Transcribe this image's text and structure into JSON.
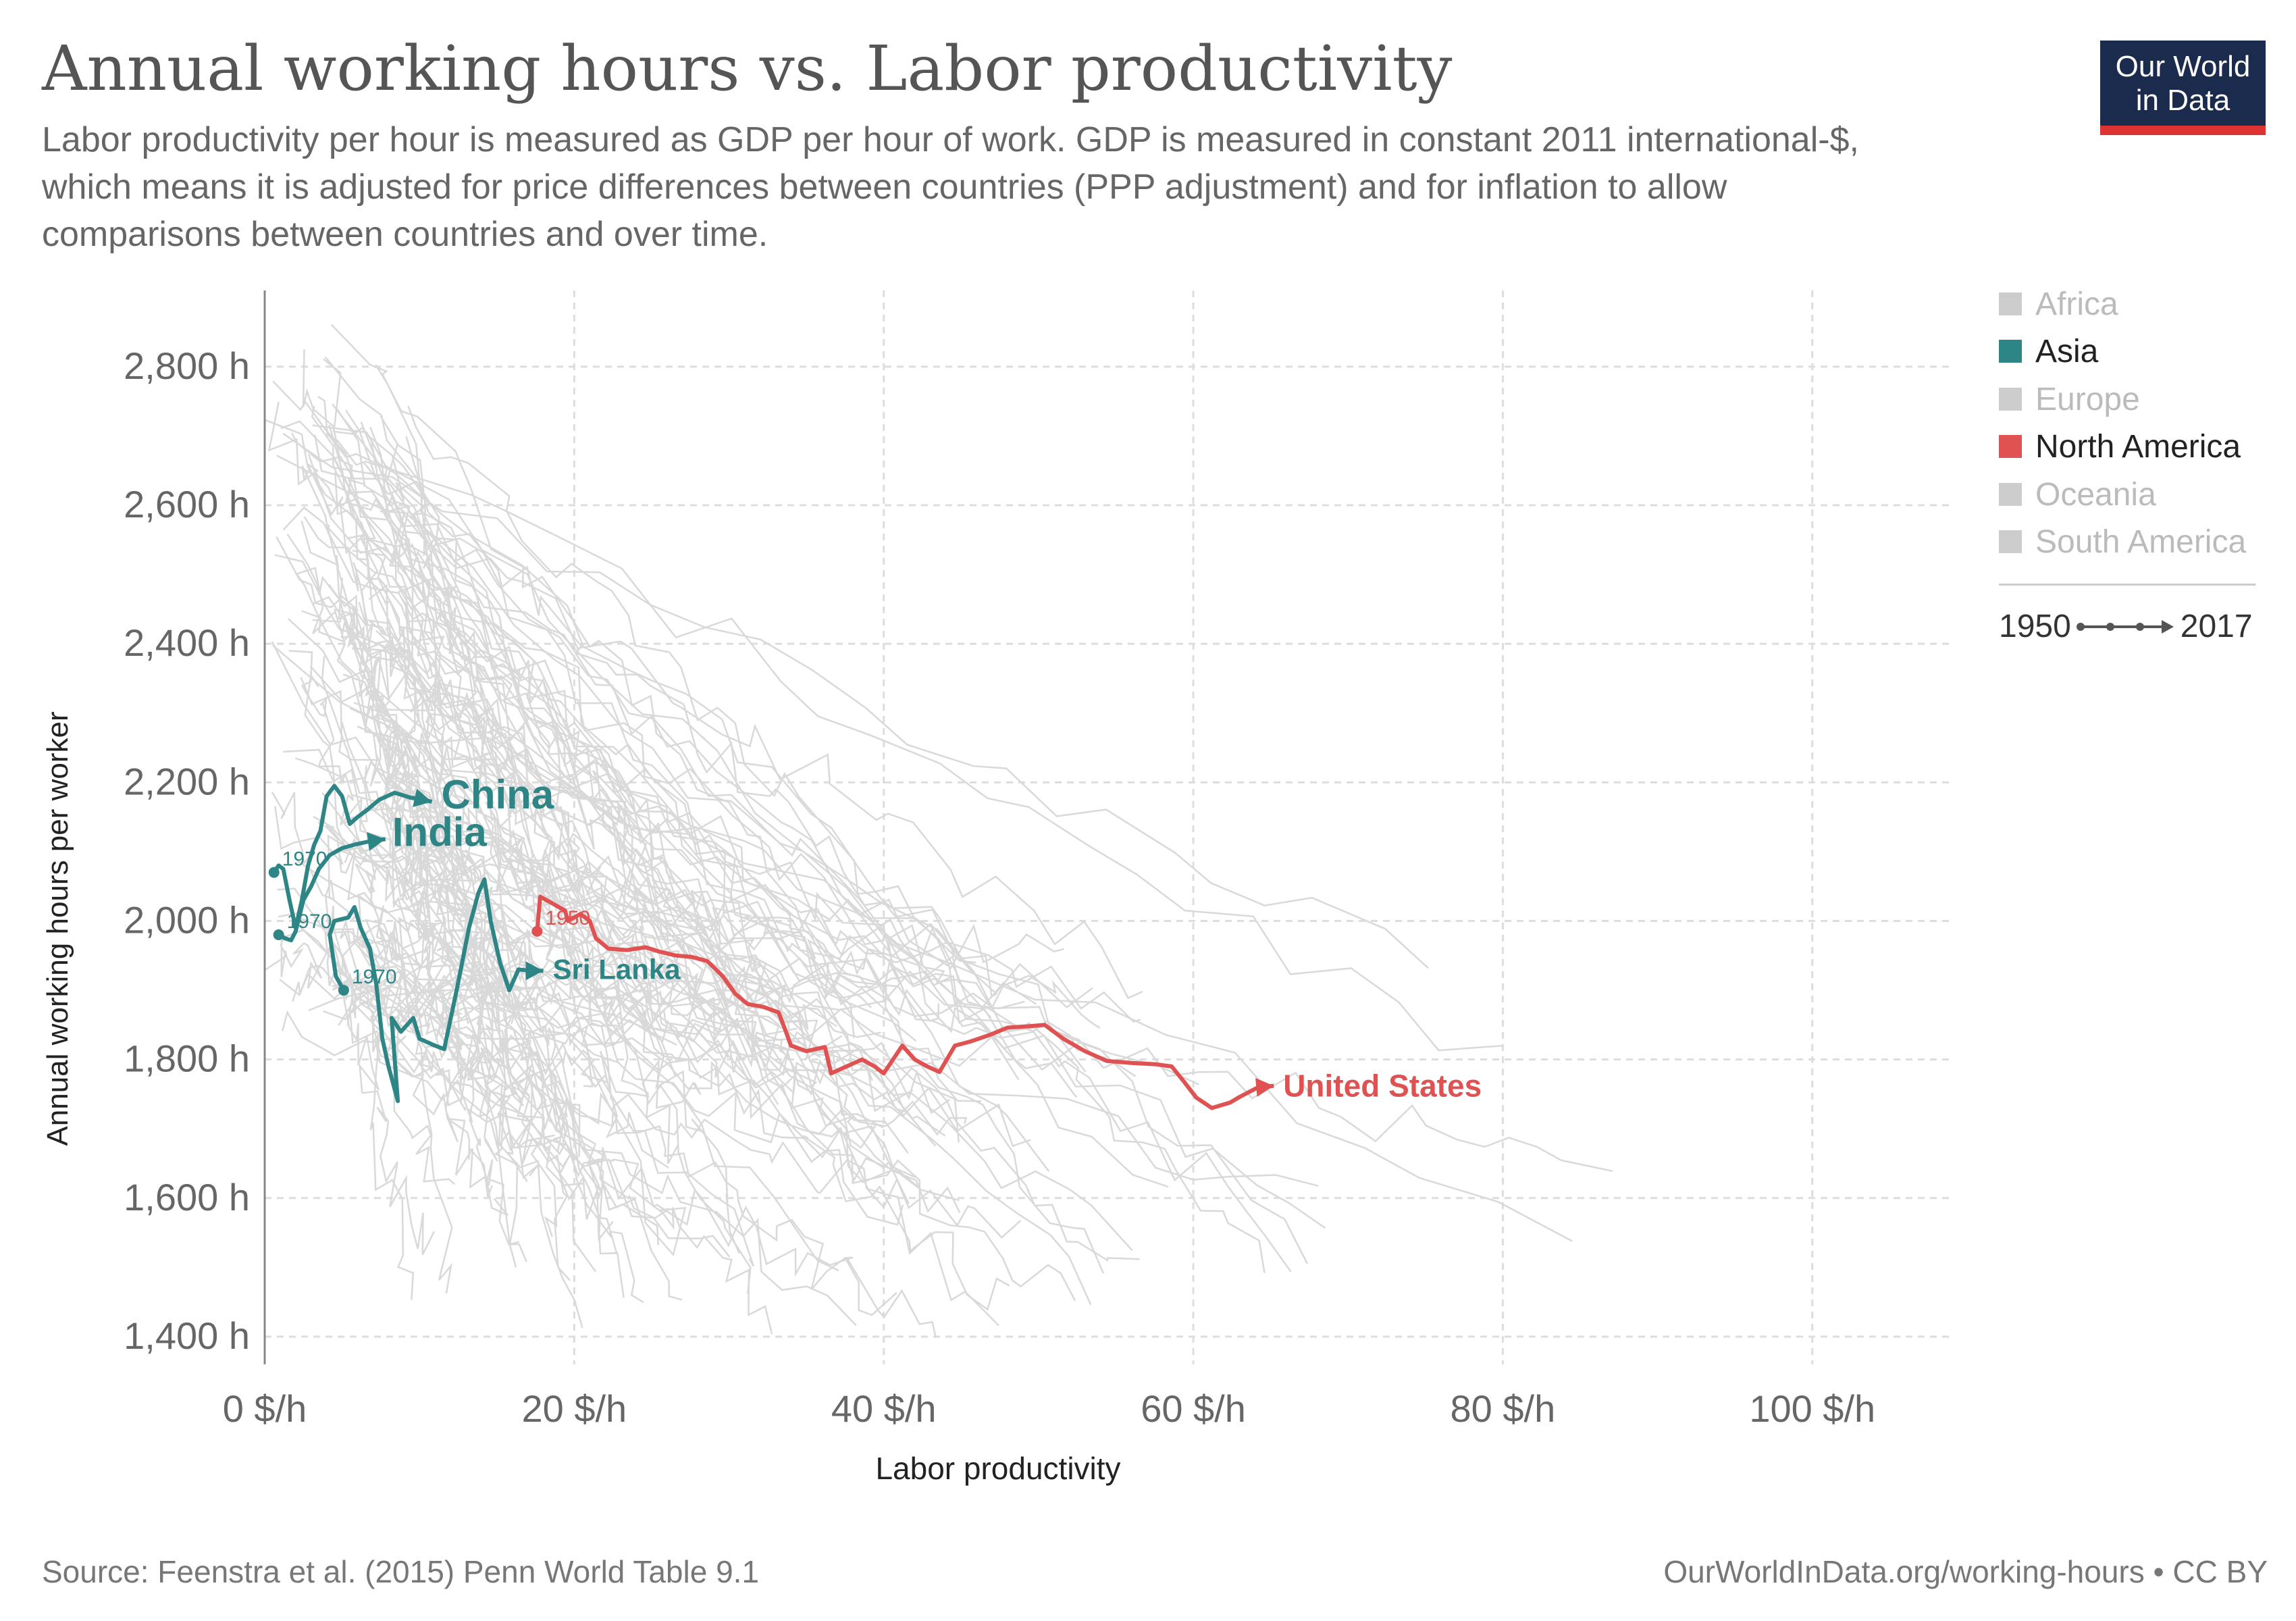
{
  "header": {
    "title": "Annual working hours vs. Labor productivity",
    "subtitle": "Labor productivity per hour is measured as GDP per hour of work. GDP is measured in constant 2011 international-$, which means it is adjusted for price differences between countries (PPP adjustment) and for inflation to allow comparisons between countries and over time.",
    "logo_line1": "Our World",
    "logo_line2": "in Data"
  },
  "legend": {
    "items": [
      {
        "label": "Africa",
        "color": "#cccccc",
        "active": false
      },
      {
        "label": "Asia",
        "color": "#2e8585",
        "active": true
      },
      {
        "label": "Europe",
        "color": "#cccccc",
        "active": false
      },
      {
        "label": "North America",
        "color": "#e05252",
        "active": true
      },
      {
        "label": "Oceania",
        "color": "#cccccc",
        "active": false
      },
      {
        "label": "South America",
        "color": "#cccccc",
        "active": false
      }
    ],
    "timeline_start": "1950",
    "timeline_end": "2017"
  },
  "footer": {
    "source": "Source: Feenstra et al. (2015) Penn World Table 9.1",
    "link": "OurWorldInData.org/working-hours • CC BY"
  },
  "chart_data": {
    "type": "line",
    "xlabel": "Labor productivity",
    "ylabel": "Annual working hours per worker",
    "xlim": [
      0,
      109
    ],
    "ylim": [
      1360,
      2910
    ],
    "xticks": [
      0,
      20,
      40,
      60,
      80,
      100
    ],
    "xtick_labels": [
      "0 $/h",
      "20 $/h",
      "40 $/h",
      "60 $/h",
      "80 $/h",
      "100 $/h"
    ],
    "yticks": [
      1400,
      1600,
      1800,
      2000,
      2200,
      2400,
      2600,
      2800
    ],
    "ytick_labels": [
      "1,400 h",
      "1,600 h",
      "1,800 h",
      "2,000 h",
      "2,200 h",
      "2,400 h",
      "2,600 h",
      "2,800 h"
    ],
    "grid": true,
    "colors": {
      "asia": "#2e8585",
      "north_america": "#e05252",
      "background_lines": "#d9d9d9"
    },
    "series": [
      {
        "name": "China",
        "region": "Asia",
        "label_size": "large",
        "start_label": "1970",
        "points": [
          [
            0.6,
            2070
          ],
          [
            0.9,
            2080
          ],
          [
            1.2,
            2075
          ],
          [
            1.6,
            2030
          ],
          [
            2.0,
            1990
          ],
          [
            2.4,
            2030
          ],
          [
            2.8,
            2080
          ],
          [
            3.2,
            2110
          ],
          [
            3.6,
            2130
          ],
          [
            4.0,
            2180
          ],
          [
            4.5,
            2195
          ],
          [
            5.0,
            2180
          ],
          [
            5.5,
            2140
          ],
          [
            6.0,
            2150
          ],
          [
            6.6,
            2160
          ],
          [
            7.4,
            2175
          ],
          [
            8.4,
            2185
          ],
          [
            9.4,
            2178
          ],
          [
            10.0,
            2176
          ],
          [
            10.8,
            2172
          ]
        ]
      },
      {
        "name": "India",
        "region": "Asia",
        "label_size": "large",
        "start_label": "1970",
        "points": [
          [
            0.9,
            1980
          ],
          [
            1.3,
            1975
          ],
          [
            1.7,
            1972
          ],
          [
            2.0,
            1985
          ],
          [
            2.5,
            2030
          ],
          [
            3.0,
            2050
          ],
          [
            3.5,
            2075
          ],
          [
            4.2,
            2095
          ],
          [
            5.0,
            2105
          ],
          [
            5.8,
            2110
          ],
          [
            6.8,
            2115
          ],
          [
            7.8,
            2118
          ]
        ]
      },
      {
        "name": "Sri Lanka",
        "region": "Asia",
        "label_size": "medium",
        "start_label": "1970",
        "points": [
          [
            5.1,
            1900
          ],
          [
            4.6,
            1920
          ],
          [
            4.2,
            1980
          ],
          [
            4.5,
            2000
          ],
          [
            5.4,
            2005
          ],
          [
            5.8,
            2020
          ],
          [
            6.2,
            1990
          ],
          [
            6.8,
            1960
          ],
          [
            7.2,
            1910
          ],
          [
            7.6,
            1830
          ],
          [
            8.0,
            1790
          ],
          [
            8.6,
            1740
          ],
          [
            8.2,
            1860
          ],
          [
            8.8,
            1840
          ],
          [
            9.6,
            1860
          ],
          [
            10.0,
            1830
          ],
          [
            11.0,
            1820
          ],
          [
            11.6,
            1815
          ],
          [
            12.4,
            1900
          ],
          [
            13.2,
            1990
          ],
          [
            13.8,
            2040
          ],
          [
            14.2,
            2060
          ],
          [
            14.6,
            2000
          ],
          [
            15.2,
            1940
          ],
          [
            15.8,
            1900
          ],
          [
            16.4,
            1930
          ],
          [
            17.2,
            1928
          ],
          [
            18.0,
            1928
          ]
        ]
      },
      {
        "name": "United States",
        "region": "North America",
        "label_size": "medium",
        "start_label": "1950",
        "points": [
          [
            17.6,
            1985
          ],
          [
            17.8,
            2035
          ],
          [
            18.6,
            2025
          ],
          [
            19.4,
            2015
          ],
          [
            19.6,
            2000
          ],
          [
            20.4,
            2010
          ],
          [
            21.0,
            2000
          ],
          [
            21.4,
            1975
          ],
          [
            22.2,
            1960
          ],
          [
            23.4,
            1958
          ],
          [
            24.6,
            1962
          ],
          [
            25.6,
            1955
          ],
          [
            26.6,
            1950
          ],
          [
            27.6,
            1948
          ],
          [
            28.6,
            1942
          ],
          [
            29.6,
            1920
          ],
          [
            30.4,
            1895
          ],
          [
            31.2,
            1880
          ],
          [
            32.2,
            1876
          ],
          [
            33.2,
            1868
          ],
          [
            33.6,
            1845
          ],
          [
            34.0,
            1820
          ],
          [
            35.0,
            1812
          ],
          [
            36.2,
            1818
          ],
          [
            36.6,
            1780
          ],
          [
            37.6,
            1790
          ],
          [
            38.6,
            1800
          ],
          [
            39.4,
            1790
          ],
          [
            40.0,
            1780
          ],
          [
            40.6,
            1800
          ],
          [
            41.2,
            1820
          ],
          [
            42.0,
            1800
          ],
          [
            42.8,
            1790
          ],
          [
            43.6,
            1782
          ],
          [
            44.6,
            1820
          ],
          [
            45.6,
            1826
          ],
          [
            46.8,
            1835
          ],
          [
            48.0,
            1846
          ],
          [
            49.4,
            1848
          ],
          [
            50.4,
            1850
          ],
          [
            51.6,
            1830
          ],
          [
            53.0,
            1812
          ],
          [
            54.4,
            1798
          ],
          [
            56.0,
            1795
          ],
          [
            57.6,
            1793
          ],
          [
            58.6,
            1790
          ],
          [
            59.4,
            1768
          ],
          [
            60.2,
            1745
          ],
          [
            61.2,
            1730
          ],
          [
            62.4,
            1738
          ],
          [
            63.0,
            1746
          ],
          [
            64.2,
            1760
          ],
          [
            65.2,
            1762
          ]
        ]
      }
    ]
  }
}
